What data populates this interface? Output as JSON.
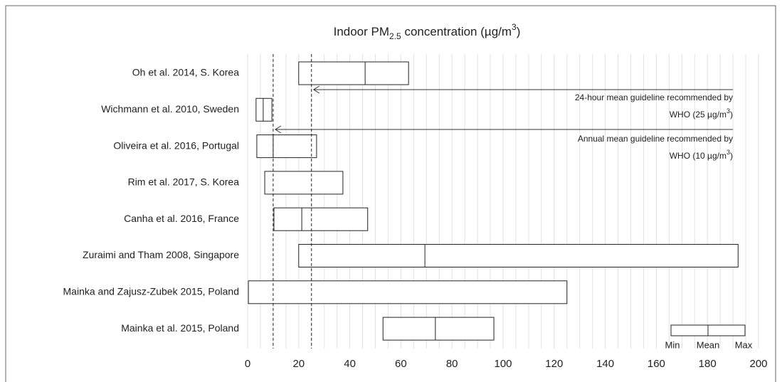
{
  "chart_data": {
    "type": "range-box",
    "title": {
      "text": "Indoor PM",
      "sub": "2.5",
      "rest": " concentration (µg/m",
      "sup": "3",
      "end": ")"
    },
    "categories": [
      "Oh et al. 2014, S. Korea",
      "Wichmann et al. 2010, Sweden",
      "Oliveira et al. 2016, Portugal",
      "Rim et al. 2017, S. Korea",
      "Canha et al. 2016, France",
      "Zuraimi and Tham 2008, Singapore",
      "Mainka and Zajusz-Zubek 2015, Poland",
      "Mainka et al. 2015, Poland"
    ],
    "min": [
      20,
      3.3,
      3.6,
      6.7,
      10.3,
      20,
      0.3,
      53
    ],
    "mean": [
      46,
      6.1,
      10,
      null,
      21.2,
      69.4,
      null,
      73.5
    ],
    "max": [
      63,
      9.5,
      27,
      37.3,
      47,
      192,
      125,
      96.4
    ],
    "xlim": [
      0,
      200
    ],
    "xticks": [
      0,
      20,
      40,
      60,
      80,
      100,
      120,
      140,
      160,
      180,
      200
    ],
    "minor_xticks": [
      0,
      5,
      10,
      15,
      20,
      25,
      30,
      35,
      40,
      45,
      50,
      55,
      60,
      65,
      70,
      75,
      80,
      85,
      90,
      95,
      100,
      105,
      110,
      115,
      120,
      125,
      130,
      135,
      140,
      145,
      150,
      155,
      160,
      165,
      170,
      175,
      180,
      185,
      190,
      195,
      200
    ],
    "reference_lines": [
      {
        "value": 25,
        "line1": "24-hour mean guideline recommended by",
        "who": "WHO (25 µg/m",
        "sup": "3",
        "end": ")"
      },
      {
        "value": 10,
        "line1": "Annual mean guideline recommended by",
        "who": "WHO (10 µg/m",
        "sup": "3",
        "end": ")"
      }
    ],
    "legend": [
      "Min",
      "Mean",
      "Max"
    ]
  }
}
